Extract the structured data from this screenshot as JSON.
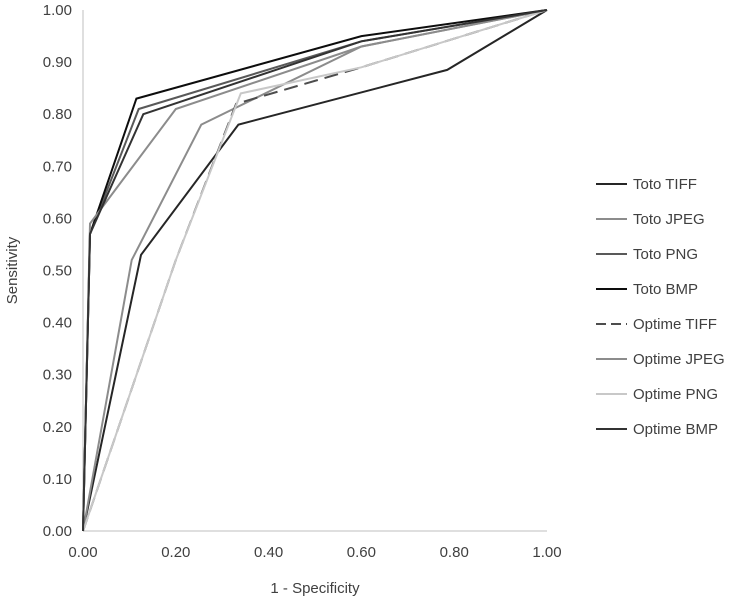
{
  "chart_data": {
    "type": "line",
    "title": "",
    "xlabel": "1 - Specificity",
    "ylabel": "Sensitivity",
    "xlim": [
      0,
      1
    ],
    "ylim": [
      0,
      1
    ],
    "x_ticks": [
      "0.00",
      "0.20",
      "0.40",
      "0.60",
      "0.80",
      "1.00"
    ],
    "y_ticks": [
      "0.00",
      "0.10",
      "0.20",
      "0.30",
      "0.40",
      "0.50",
      "0.60",
      "0.70",
      "0.80",
      "0.90",
      "1.00"
    ],
    "grid": false,
    "legend_position": "right",
    "series": [
      {
        "name": "Toto TIFF",
        "color": "#262626",
        "dash": "solid",
        "points": [
          [
            0,
            0
          ],
          [
            0.125,
            0.53
          ],
          [
            0.335,
            0.78
          ],
          [
            0.785,
            0.885
          ],
          [
            1,
            1
          ]
        ]
      },
      {
        "name": "Toto JPEG",
        "color": "#8c8c8c",
        "dash": "solid",
        "points": [
          [
            0,
            0
          ],
          [
            0.105,
            0.52
          ],
          [
            0.255,
            0.78
          ],
          [
            0.6,
            0.93
          ],
          [
            1,
            1
          ]
        ]
      },
      {
        "name": "Toto PNG",
        "color": "#595959",
        "dash": "solid",
        "points": [
          [
            0,
            0
          ],
          [
            0.015,
            0.57
          ],
          [
            0.12,
            0.81
          ],
          [
            0.6,
            0.94
          ],
          [
            1,
            1
          ]
        ]
      },
      {
        "name": "Toto BMP",
        "color": "#0d0d0d",
        "dash": "solid",
        "points": [
          [
            0,
            0
          ],
          [
            0.015,
            0.57
          ],
          [
            0.115,
            0.83
          ],
          [
            0.6,
            0.95
          ],
          [
            1,
            1
          ]
        ]
      },
      {
        "name": "Optime TIFF",
        "color": "#4d4d4d",
        "dash": "dashed",
        "points": [
          [
            0,
            0
          ],
          [
            0.2,
            0.52
          ],
          [
            0.33,
            0.82
          ],
          [
            0.6,
            0.89
          ],
          [
            1,
            1
          ]
        ]
      },
      {
        "name": "Optime JPEG",
        "color": "#8c8c8c",
        "dash": "solid",
        "points": [
          [
            0,
            0
          ],
          [
            0.015,
            0.59
          ],
          [
            0.2,
            0.81
          ],
          [
            0.6,
            0.93
          ],
          [
            1,
            1
          ]
        ]
      },
      {
        "name": "Optime PNG",
        "color": "#c8c8c8",
        "dash": "solid",
        "points": [
          [
            0,
            0
          ],
          [
            0.2,
            0.52
          ],
          [
            0.34,
            0.84
          ],
          [
            0.6,
            0.89
          ],
          [
            1,
            1
          ]
        ]
      },
      {
        "name": "Optime BMP",
        "color": "#333333",
        "dash": "solid",
        "points": [
          [
            0,
            0
          ],
          [
            0.015,
            0.57
          ],
          [
            0.13,
            0.8
          ],
          [
            0.6,
            0.94
          ],
          [
            1,
            1
          ]
        ]
      }
    ]
  }
}
